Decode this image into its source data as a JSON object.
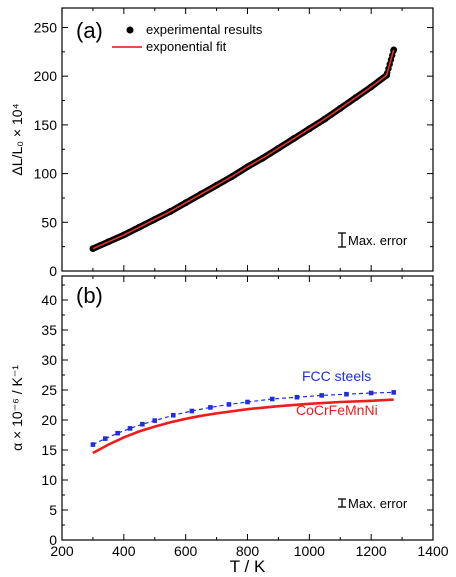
{
  "chart_data": [
    {
      "panel_label": "(a)",
      "type": "scatter",
      "ylabel": "ΔL/L₀ × 10⁴",
      "xlim": [
        200,
        1400
      ],
      "ylim": [
        0,
        270
      ],
      "xticks": [
        200,
        400,
        600,
        800,
        1000,
        1200,
        1400
      ],
      "yticks": [
        0,
        50,
        100,
        150,
        200,
        250
      ],
      "grid": false,
      "legend_position": "top-left",
      "series": [
        {
          "name": "experimental results",
          "style": "filled-circles",
          "color": "#000000",
          "x": [
            300,
            350,
            400,
            450,
            500,
            550,
            600,
            650,
            700,
            750,
            800,
            850,
            900,
            950,
            1000,
            1050,
            1100,
            1150,
            1200,
            1250,
            1273
          ],
          "y": [
            23,
            30,
            37,
            45,
            53,
            61,
            70,
            79,
            88,
            97,
            107,
            116,
            126,
            136,
            146,
            156,
            167,
            178,
            189,
            201,
            227
          ]
        },
        {
          "name": "exponential fit",
          "style": "line",
          "color": "#e8322a",
          "x": [
            300,
            350,
            400,
            450,
            500,
            550,
            600,
            650,
            700,
            750,
            800,
            850,
            900,
            950,
            1000,
            1050,
            1100,
            1150,
            1200,
            1250,
            1273
          ],
          "y": [
            23,
            30,
            37,
            45,
            53,
            61,
            70,
            79,
            88,
            97,
            107,
            116,
            126,
            136,
            146,
            156,
            167,
            178,
            189,
            201,
            227
          ]
        }
      ],
      "annotation": "Max. error"
    },
    {
      "panel_label": "(b)",
      "type": "line",
      "xlabel": "T / K",
      "ylabel": "α × 10⁻⁶ / K⁻¹",
      "xlim": [
        200,
        1400
      ],
      "ylim": [
        0,
        44
      ],
      "xticks": [
        200,
        400,
        600,
        800,
        1000,
        1200,
        1400
      ],
      "yticks": [
        0,
        5,
        10,
        15,
        20,
        25,
        30,
        35,
        40
      ],
      "grid": false,
      "series": [
        {
          "name": "FCC  steels",
          "style": "dashed-with-squares",
          "color": "#1f2fe0",
          "x": [
            300,
            340,
            380,
            420,
            460,
            500,
            560,
            620,
            680,
            740,
            800,
            880,
            960,
            1040,
            1120,
            1200,
            1273
          ],
          "y": [
            15.9,
            16.9,
            17.8,
            18.6,
            19.3,
            19.9,
            20.8,
            21.5,
            22.1,
            22.6,
            23.0,
            23.5,
            23.8,
            24.1,
            24.3,
            24.5,
            24.6
          ]
        },
        {
          "name": "CoCrFeMnNi",
          "style": "solid",
          "color": "#ee1c1c",
          "x": [
            300,
            350,
            400,
            450,
            500,
            550,
            600,
            650,
            700,
            800,
            900,
            1000,
            1100,
            1200,
            1273
          ],
          "y": [
            14.5,
            15.9,
            17.1,
            18.1,
            18.9,
            19.6,
            20.2,
            20.7,
            21.1,
            21.8,
            22.3,
            22.7,
            23.0,
            23.2,
            23.4
          ]
        }
      ],
      "annotation": "Max. error"
    }
  ]
}
